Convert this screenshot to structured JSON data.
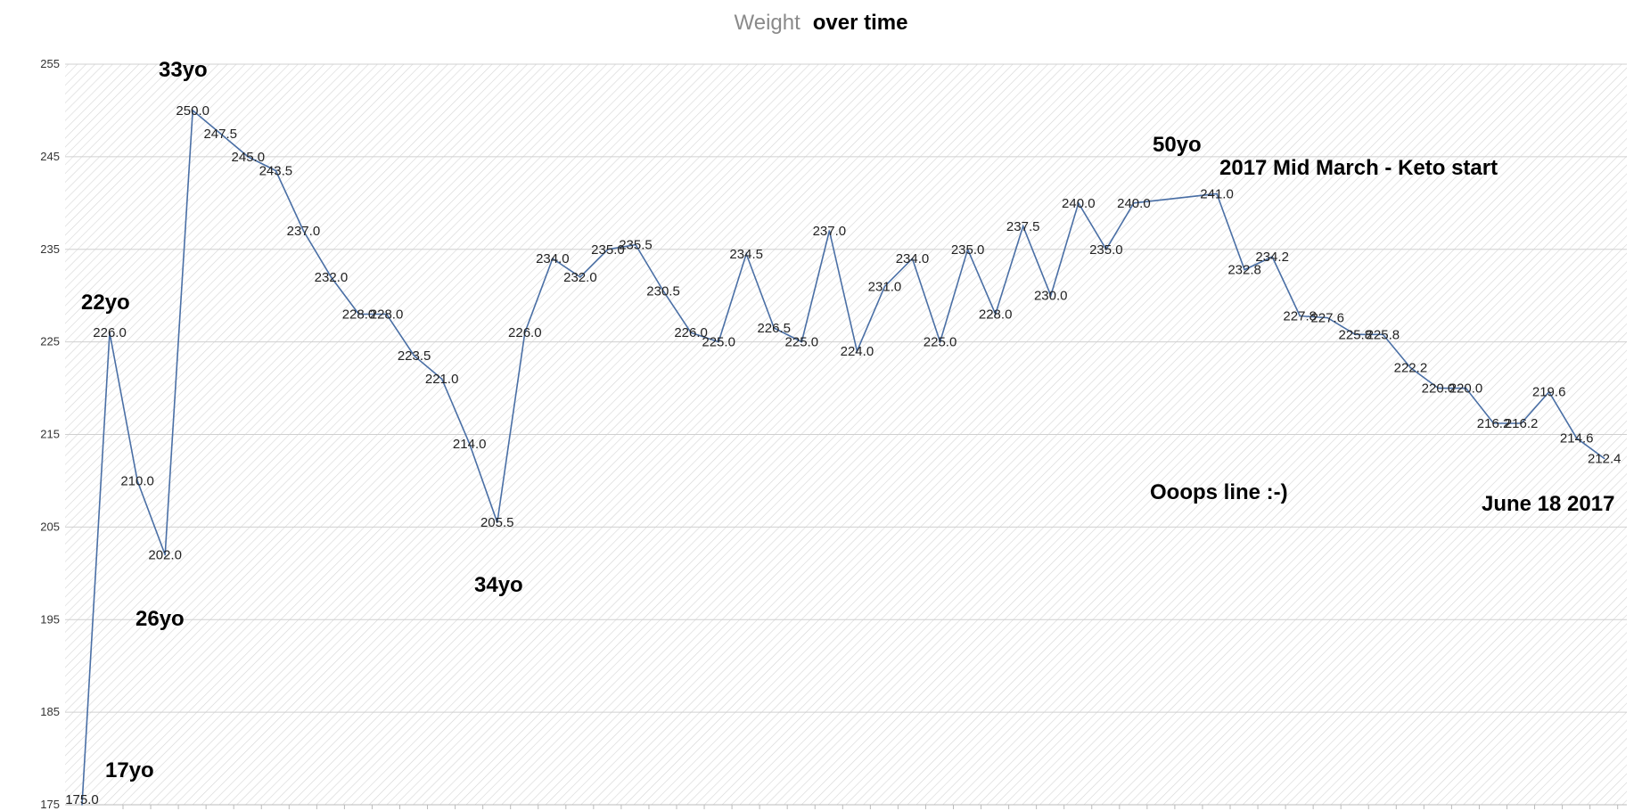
{
  "title": {
    "part1": "Weight",
    "part2": "over time"
  },
  "colors": {
    "line": "#4a6fa5",
    "grid": "#d0d0d0",
    "hatch": "#d6d6d6",
    "background": "#ffffff"
  },
  "chart_data": {
    "type": "line",
    "title": "Weight over time",
    "xlabel": "",
    "ylabel": "",
    "ylim": [
      175,
      255
    ],
    "yticks": [
      175,
      185,
      195,
      205,
      215,
      225,
      235,
      245,
      255
    ],
    "grid": true,
    "series": [
      {
        "values": [
          175.0,
          226.0,
          210.0,
          202.0,
          250.0,
          247.5,
          245.0,
          243.5,
          237.0,
          232.0,
          228.0,
          228.0,
          223.5,
          221.0,
          214.0,
          205.5,
          226.0,
          234.0,
          232.0,
          235.0,
          235.5,
          230.5,
          226.0,
          225.0,
          234.5,
          226.5,
          225.0,
          237.0,
          224.0,
          231.0,
          234.0,
          225.0,
          235.0,
          228.0,
          237.5,
          230.0,
          240.0,
          235.0,
          240.0,
          null,
          null,
          241.0,
          232.8,
          234.2,
          227.8,
          227.6,
          225.8,
          225.8,
          222.2,
          220.0,
          220.0,
          216.2,
          216.2,
          219.6,
          214.6,
          212.4
        ]
      }
    ],
    "data_labels": [
      "175.0",
      "226.0",
      "210.0",
      "202.0",
      "250.0",
      "247.5",
      "245.0",
      "243.5",
      "237.0",
      "232.0",
      "228.0",
      "228.0",
      "223.5",
      "221.0",
      "214.0",
      "205.5",
      "226.0",
      "234.0",
      "232.0",
      "235.0",
      "235.5",
      "230.5",
      "226.0",
      "225.0",
      "234.5",
      "226.5",
      "225.0",
      "237.0",
      "224.0",
      "231.0",
      "234.0",
      "225.0",
      "235.0",
      "228.0",
      "237.5",
      "230.0",
      "240.0",
      "235.0",
      "240.0",
      "",
      "",
      "241.0",
      "232.8",
      "234.2",
      "227.8",
      "227.6",
      "225.8",
      "225.8",
      "222.2",
      "220.0",
      "220.0",
      "216.2",
      "216.2",
      "219.6",
      "214.6",
      "212.4"
    ],
    "annotations": [
      "33yo",
      "22yo",
      "26yo",
      "17yo",
      "34yo",
      "50yo",
      "2017 Mid March - Keto start",
      "Ooops line :-)",
      "June 18 2017"
    ]
  }
}
